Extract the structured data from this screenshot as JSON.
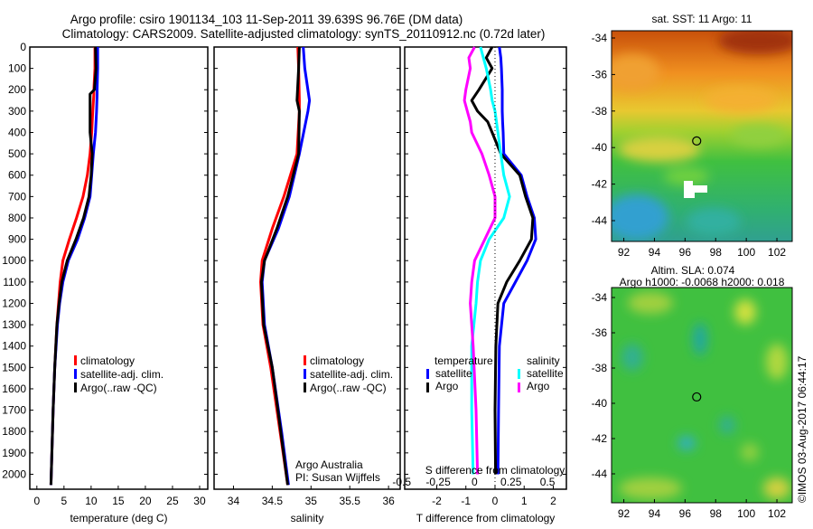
{
  "title_line1": "Argo profile: csiro 1901134_103 11-Sep-2011 39.639S 96.76E (DM data)",
  "title_line2": "Climatology: CARS2009. Satellite-adjusted climatology: synTS_20110912.nc (0.72d later)",
  "colors": {
    "climatology": "#ff0000",
    "satellite": "#0000ff",
    "argo": "#000000",
    "sal_satellite": "#00ffff",
    "sal_argo": "#ff00ff"
  },
  "legend": {
    "climatology": "climatology",
    "satellite": "satellite-adj. clim.",
    "argo": "Argo(..raw -QC)"
  },
  "diff_legend": {
    "temperature": "temperature",
    "salinity": "salinity",
    "satellite": "satellite",
    "argo": "Argo"
  },
  "credit": {
    "line1": "Argo Australia",
    "line2": "PI: Susan Wijffels"
  },
  "map1_title": "sat. SST: 11 Argo: 11",
  "map2_title1": "Altim. SLA: 0.074",
  "map2_title2": "Argo h1000: -0.0068 h2000: 0.018",
  "stamp": "©IMOS 03-Aug-2017 06:44:17",
  "chart_data": [
    {
      "type": "line",
      "name": "temperature",
      "xlabel": "temperature (deg C)",
      "ylabel": "",
      "xlim": [
        -1.3,
        31.5
      ],
      "ylim": [
        2070,
        0
      ],
      "xticks": [
        0,
        5,
        10,
        15,
        20,
        25,
        30
      ],
      "yticks": [
        0,
        100,
        200,
        300,
        400,
        500,
        600,
        700,
        800,
        900,
        1000,
        1100,
        1200,
        1300,
        1400,
        1500,
        1600,
        1700,
        1800,
        1900,
        2000
      ],
      "depth": [
        0,
        100,
        200,
        220,
        300,
        400,
        500,
        600,
        700,
        800,
        900,
        1000,
        1100,
        1200,
        1300,
        1500,
        1700,
        2050
      ],
      "series": [
        {
          "name": "climatology",
          "color": "#ff0000",
          "values": [
            10.7,
            10.7,
            10.5,
            10.5,
            10.3,
            10.1,
            9.8,
            9.3,
            8.5,
            7.3,
            6.0,
            4.8,
            4.3,
            4.0,
            3.7,
            3.3,
            3.0,
            2.6
          ]
        },
        {
          "name": "satellite-adj. clim.",
          "color": "#0000ff",
          "values": [
            11.2,
            11.2,
            11.1,
            11.1,
            11.0,
            10.8,
            10.4,
            10.1,
            9.8,
            8.8,
            7.5,
            5.8,
            4.8,
            4.2,
            3.8,
            3.3,
            3.0,
            2.6
          ]
        },
        {
          "name": "Argo(..raw -QC)",
          "color": "#000000",
          "values": [
            10.8,
            10.9,
            10.6,
            9.8,
            9.8,
            9.8,
            10.2,
            10.0,
            9.6,
            8.6,
            7.2,
            5.6,
            4.6,
            4.1,
            3.7,
            3.3,
            3.0,
            2.6
          ]
        }
      ]
    },
    {
      "type": "line",
      "name": "salinity",
      "xlabel": "salinity",
      "xlim": [
        33.75,
        36.15
      ],
      "ylim": [
        2070,
        0
      ],
      "xticks": [
        34,
        34.5,
        35,
        35.5,
        36
      ],
      "depth": [
        0,
        100,
        250,
        300,
        500,
        700,
        850,
        1000,
        1100,
        1300,
        1500,
        1800,
        2050
      ],
      "series": [
        {
          "name": "climatology",
          "color": "#ff0000",
          "values": [
            34.83,
            34.84,
            34.85,
            34.85,
            34.82,
            34.65,
            34.5,
            34.37,
            34.35,
            34.38,
            34.48,
            34.6,
            34.7
          ]
        },
        {
          "name": "satellite-adj. clim.",
          "color": "#0000ff",
          "values": [
            34.9,
            34.92,
            34.98,
            34.96,
            34.85,
            34.72,
            34.58,
            34.4,
            34.37,
            34.4,
            34.5,
            34.62,
            34.71
          ]
        },
        {
          "name": "Argo(..raw -QC)",
          "color": "#000000",
          "values": [
            34.85,
            34.84,
            34.82,
            34.85,
            34.84,
            34.7,
            34.56,
            34.4,
            34.36,
            34.39,
            34.5,
            34.61,
            34.7
          ]
        }
      ]
    },
    {
      "type": "line",
      "name": "difference",
      "xlabel": "T difference from climatology",
      "x2label": "S difference from climatology",
      "xlim": [
        -3.1,
        2.45
      ],
      "x2lim": [
        -0.48,
        0.63
      ],
      "ylim": [
        2070,
        0
      ],
      "xticks": [
        -2,
        -1,
        0,
        1,
        2
      ],
      "x2ticks": [
        -0.5,
        -0.25,
        0,
        0.25,
        0.5
      ],
      "depth": [
        0,
        50,
        100,
        200,
        250,
        300,
        350,
        400,
        500,
        600,
        700,
        800,
        900,
        1000,
        1100,
        1200,
        1400,
        1700,
        2000
      ],
      "series": [
        {
          "name": "temperature satellite",
          "axis": "T",
          "color": "#0000ff",
          "values": [
            0.15,
            0.2,
            0.22,
            0.25,
            0.25,
            0.25,
            0.26,
            0.28,
            0.3,
            0.9,
            1.1,
            1.35,
            1.4,
            1.1,
            0.7,
            0.3,
            0.15,
            0.12,
            0.1
          ]
        },
        {
          "name": "temperature Argo",
          "axis": "T",
          "color": "#000000",
          "values": [
            -0.1,
            -0.3,
            -0.1,
            -0.55,
            -0.8,
            -0.6,
            -0.25,
            -0.1,
            0.2,
            0.85,
            1.05,
            1.3,
            1.25,
            0.85,
            0.4,
            0.1,
            0.03,
            0.0,
            0.02
          ]
        },
        {
          "name": "salinity satellite",
          "axis": "S",
          "color": "#00ffff",
          "values": [
            0.04,
            0.06,
            0.08,
            0.11,
            0.12,
            0.14,
            0.15,
            0.16,
            0.18,
            0.2,
            0.24,
            0.2,
            0.1,
            0.04,
            0.02,
            0.01,
            -0.02,
            -0.02,
            -0.01
          ]
        },
        {
          "name": "salinity Argo",
          "axis": "S",
          "color": "#ff00ff",
          "values": [
            0,
            -0.04,
            -0.03,
            -0.06,
            -0.07,
            -0.05,
            -0.03,
            -0.02,
            0.05,
            0.1,
            0.14,
            0.14,
            0.07,
            0,
            -0.02,
            -0.03,
            -0.01,
            0.01,
            0.02
          ]
        }
      ]
    },
    {
      "type": "heatmap",
      "name": "sst-map",
      "title": "sat. SST: 11 Argo: 11",
      "xlim": [
        91.2,
        103
      ],
      "ylim": [
        -45.1,
        -33.6
      ],
      "xticks": [
        92,
        94,
        96,
        98,
        100,
        102
      ],
      "yticks": [
        -34,
        -36,
        -38,
        -40,
        -42,
        -44
      ],
      "argo_position": [
        96.76,
        -39.639
      ]
    },
    {
      "type": "heatmap",
      "name": "sla-map",
      "title": "Altim. SLA: 0.074",
      "xlim": [
        91.2,
        103
      ],
      "ylim": [
        -45.1,
        -33.6
      ],
      "xticks": [
        92,
        94,
        96,
        98,
        100,
        102
      ],
      "yticks": [
        -34,
        -36,
        -38,
        -40,
        -42,
        -44
      ],
      "argo_position": [
        96.76,
        -39.639
      ]
    }
  ]
}
